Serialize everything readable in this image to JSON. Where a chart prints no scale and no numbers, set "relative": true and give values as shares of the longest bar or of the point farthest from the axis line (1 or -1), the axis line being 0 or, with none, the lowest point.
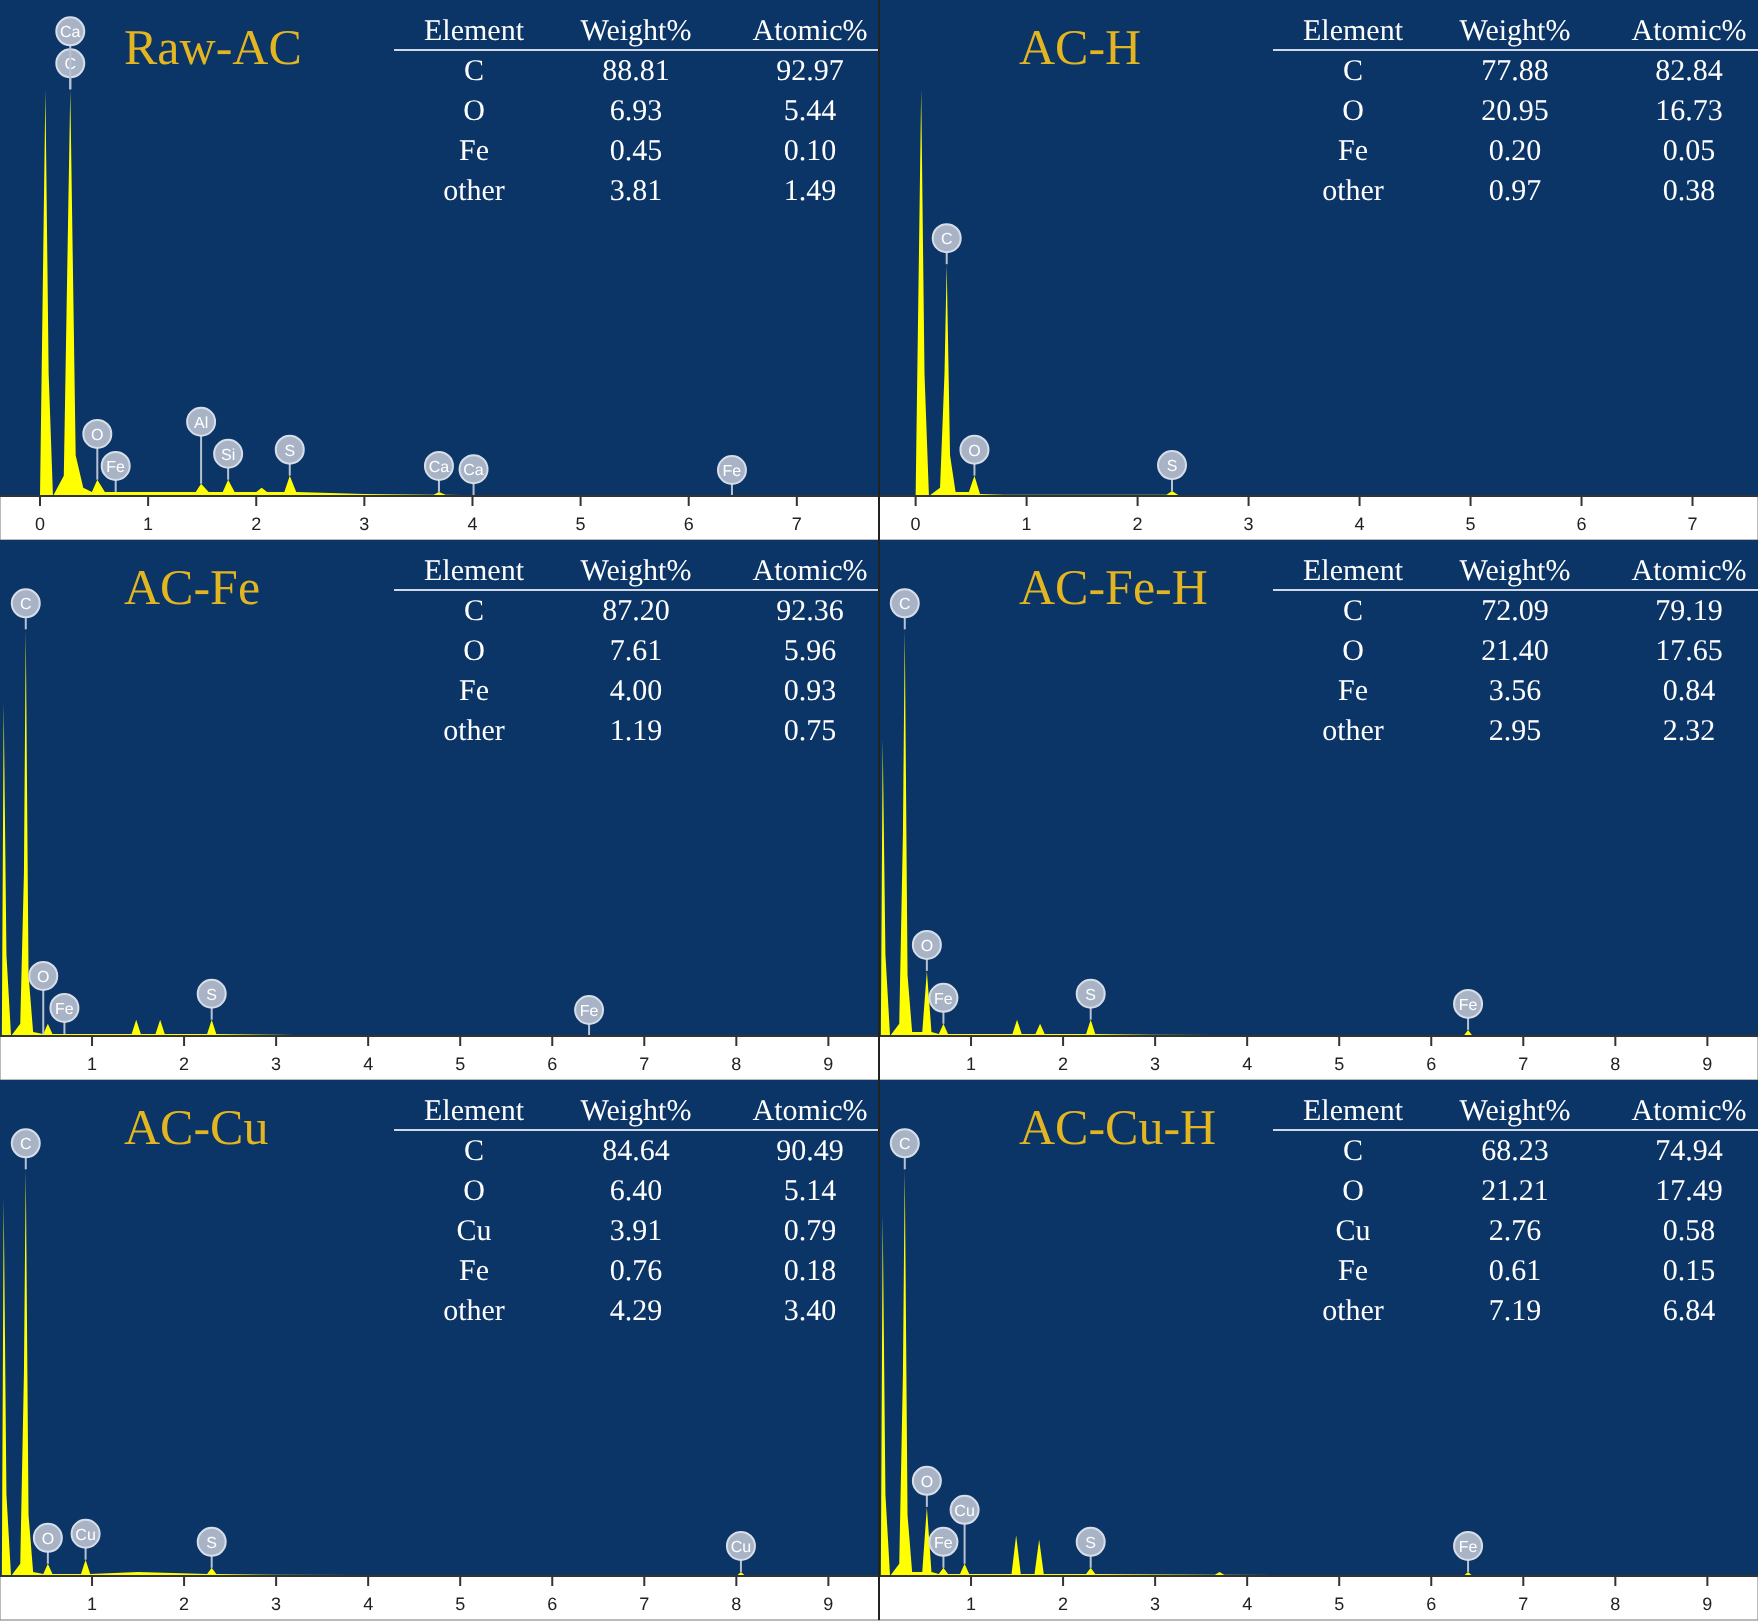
{
  "chart_data": [
    {
      "type": "area",
      "title": "Raw-AC",
      "relative": true,
      "color": "#ffff00",
      "xlim": [
        -0.37,
        7.76
      ],
      "xticks": [
        0,
        1,
        2,
        3,
        4,
        5,
        6,
        7
      ],
      "x": [
        0,
        0.03,
        0.05,
        0.08,
        0.12,
        0.22,
        0.28,
        0.33,
        0.4,
        0.48,
        0.53,
        0.6,
        0.7,
        1.2,
        1.44,
        1.49,
        1.56,
        1.69,
        1.74,
        1.8,
        2.0,
        2.05,
        2.1,
        2.26,
        2.31,
        2.37,
        3.0,
        3.64,
        3.69,
        3.75,
        4.5,
        7.7
      ],
      "values": [
        0,
        0.6,
        1,
        0.3,
        0,
        0.05,
        1,
        0.1,
        0.02,
        0.01,
        0.04,
        0.01,
        0.01,
        0.01,
        0.01,
        0.03,
        0.01,
        0.01,
        0.04,
        0.01,
        0.01,
        0.02,
        0.01,
        0.01,
        0.05,
        0.01,
        0.005,
        0.003,
        0.01,
        0.003,
        0,
        0
      ],
      "annotations": [
        "Element",
        "Weight%",
        "Atomic%",
        "C",
        "88.81",
        "92.97",
        "O",
        "6.93",
        "5.44",
        "Fe",
        "0.45",
        "0.10",
        "other",
        "3.81",
        "1.49",
        {
          "text": "C",
          "x": 0.28,
          "y": 1
        },
        {
          "text": "Ca",
          "x": 0.28,
          "y": 1
        },
        {
          "text": "Fe",
          "x": 0.7,
          "y": 0.01
        },
        {
          "text": "O",
          "x": 0.53,
          "y": 0.04
        },
        {
          "text": "Si",
          "x": 1.74,
          "y": 0.04
        },
        {
          "text": "Al",
          "x": 1.49,
          "y": 0.03
        },
        {
          "text": "S",
          "x": 2.31,
          "y": 0.05
        },
        {
          "text": "Ca",
          "x": 3.69,
          "y": 0.01
        },
        {
          "text": "Ca",
          "x": 4.01,
          "y": 0.002
        },
        {
          "text": "Fe",
          "x": 6.4,
          "y": 0
        }
      ]
    },
    {
      "type": "area",
      "title": "AC-H",
      "relative": true,
      "color": "#ffff00",
      "xlim": [
        -0.33,
        7.59
      ],
      "xticks": [
        0,
        1,
        2,
        3,
        4,
        5,
        6,
        7
      ],
      "x": [
        0,
        0.02,
        0.05,
        0.08,
        0.12,
        0.22,
        0.26,
        0.28,
        0.31,
        0.36,
        0.48,
        0.53,
        0.58,
        0.8,
        1.5,
        2.26,
        2.31,
        2.37,
        3.0,
        7.5
      ],
      "values": [
        0,
        0.4,
        1,
        0.3,
        0,
        0.02,
        0.3,
        0.57,
        0.1,
        0.01,
        0.01,
        0.05,
        0.005,
        0.003,
        0.003,
        0.003,
        0.012,
        0.002,
        0,
        0
      ],
      "annotations": [
        "Element",
        "Weight%",
        "Atomic%",
        "C",
        "77.88",
        "82.84",
        "O",
        "20.95",
        "16.73",
        "Fe",
        "0.20",
        "0.05",
        "other",
        "0.97",
        "0.38",
        {
          "text": "C",
          "x": 0.28,
          "y": 0.57
        },
        {
          "text": "O",
          "x": 0.53,
          "y": 0.05
        },
        {
          "text": "S",
          "x": 2.31,
          "y": 0.012
        }
      ]
    },
    {
      "type": "area",
      "title": "AC-Fe",
      "relative": true,
      "color": "#ffff00",
      "xlim": [
        0,
        9.55
      ],
      "xticks": [
        1,
        2,
        3,
        4,
        5,
        6,
        7,
        8,
        9
      ],
      "x": [
        0.02,
        0.04,
        0.07,
        0.12,
        0.22,
        0.26,
        0.28,
        0.31,
        0.36,
        0.47,
        0.52,
        0.57,
        0.7,
        1.43,
        1.48,
        1.53,
        1.69,
        1.74,
        1.79,
        2.25,
        2.3,
        2.35,
        3.0,
        4.0,
        9.5
      ],
      "values": [
        0,
        0.82,
        0.2,
        0,
        0.03,
        0.4,
        1,
        0.15,
        0.01,
        0.005,
        0.03,
        0.005,
        0.005,
        0.005,
        0.04,
        0.005,
        0.005,
        0.04,
        0.005,
        0.005,
        0.04,
        0.005,
        0.003,
        0,
        0
      ],
      "annotations": [
        "Element",
        "Weight%",
        "Atomic%",
        "C",
        "87.20",
        "92.36",
        "O",
        "7.61",
        "5.96",
        "Fe",
        "4.00",
        "0.93",
        "other",
        "1.19",
        "0.75",
        {
          "text": "C",
          "x": 0.28,
          "y": 1
        },
        {
          "text": "Fe",
          "x": 0.7,
          "y": 0.005
        },
        {
          "text": "O",
          "x": 0.47,
          "y": 0.005
        },
        {
          "text": "S",
          "x": 2.3,
          "y": 0.04
        },
        {
          "text": "Fe",
          "x": 6.4,
          "y": 0
        }
      ]
    },
    {
      "type": "area",
      "title": "AC-Fe-H",
      "relative": true,
      "color": "#ffff00",
      "xlim": [
        0,
        9.55
      ],
      "xticks": [
        1,
        2,
        3,
        4,
        5,
        6,
        7,
        8,
        9
      ],
      "x": [
        0.02,
        0.04,
        0.07,
        0.12,
        0.22,
        0.26,
        0.28,
        0.31,
        0.36,
        0.47,
        0.52,
        0.57,
        0.65,
        0.7,
        0.75,
        1.45,
        1.5,
        1.55,
        1.7,
        1.75,
        1.8,
        2.25,
        2.3,
        2.35,
        3.0,
        6.35,
        6.4,
        6.45,
        9.5
      ],
      "values": [
        0,
        0.73,
        0.2,
        0,
        0.03,
        0.5,
        1,
        0.15,
        0.01,
        0.01,
        0.16,
        0.01,
        0.005,
        0.03,
        0.005,
        0.005,
        0.04,
        0.005,
        0.005,
        0.03,
        0.005,
        0.005,
        0.04,
        0.005,
        0.003,
        0,
        0.015,
        0,
        0
      ],
      "annotations": [
        "Element",
        "Weight%",
        "Atomic%",
        "C",
        "72.09",
        "79.19",
        "O",
        "21.40",
        "17.65",
        "Fe",
        "3.56",
        "0.84",
        "other",
        "2.95",
        "2.32",
        {
          "text": "C",
          "x": 0.28,
          "y": 1
        },
        {
          "text": "O",
          "x": 0.52,
          "y": 0.16
        },
        {
          "text": "Fe",
          "x": 0.7,
          "y": 0.03
        },
        {
          "text": "S",
          "x": 2.3,
          "y": 0.04
        },
        {
          "text": "Fe",
          "x": 6.4,
          "y": 0.015
        }
      ]
    },
    {
      "type": "area",
      "title": "AC-Cu",
      "relative": true,
      "color": "#ffff00",
      "xlim": [
        0,
        9.55
      ],
      "xticks": [
        1,
        2,
        3,
        4,
        5,
        6,
        7,
        8,
        9
      ],
      "x": [
        0.02,
        0.04,
        0.07,
        0.12,
        0.22,
        0.26,
        0.28,
        0.31,
        0.36,
        0.47,
        0.52,
        0.57,
        0.88,
        0.93,
        0.98,
        1.5,
        2.25,
        2.3,
        2.35,
        3.0,
        8.0,
        8.05,
        8.1,
        9.5
      ],
      "values": [
        0,
        0.93,
        0.2,
        0,
        0.03,
        0.5,
        1,
        0.15,
        0.01,
        0.005,
        0.03,
        0.005,
        0.005,
        0.04,
        0.005,
        0.01,
        0.005,
        0.02,
        0.005,
        0.003,
        0,
        0.01,
        0,
        0
      ],
      "annotations": [
        "Element",
        "Weight%",
        "Atomic%",
        "C",
        "84.64",
        "90.49",
        "O",
        "6.40",
        "5.14",
        "Cu",
        "3.91",
        "0.79",
        "Fe",
        "0.76",
        "0.18",
        "other",
        "4.29",
        "3.40",
        {
          "text": "C",
          "x": 0.28,
          "y": 1
        },
        {
          "text": "O",
          "x": 0.52,
          "y": 0.03
        },
        {
          "text": "Cu",
          "x": 0.93,
          "y": 0.04
        },
        {
          "text": "S",
          "x": 2.3,
          "y": 0.02
        },
        {
          "text": "Cu",
          "x": 8.05,
          "y": 0.01
        }
      ]
    },
    {
      "type": "area",
      "title": "AC-Cu-H",
      "relative": true,
      "color": "#ffff00",
      "xlim": [
        0,
        9.55
      ],
      "xticks": [
        1,
        2,
        3,
        4,
        5,
        6,
        7,
        8,
        9
      ],
      "x": [
        0.02,
        0.04,
        0.07,
        0.12,
        0.22,
        0.26,
        0.28,
        0.31,
        0.36,
        0.47,
        0.52,
        0.57,
        0.65,
        0.7,
        0.75,
        0.88,
        0.93,
        0.98,
        1.44,
        1.49,
        1.54,
        1.69,
        1.74,
        1.79,
        2.25,
        2.3,
        2.35,
        3.65,
        3.7,
        3.75,
        6.35,
        6.4,
        6.45,
        9.5
      ],
      "values": [
        0,
        0.89,
        0.2,
        0,
        0.03,
        0.5,
        1,
        0.15,
        0.01,
        0.01,
        0.17,
        0.01,
        0.005,
        0.02,
        0.005,
        0.005,
        0.03,
        0.005,
        0.005,
        0.1,
        0.005,
        0.005,
        0.09,
        0.005,
        0.005,
        0.02,
        0.005,
        0.003,
        0.01,
        0.003,
        0,
        0.01,
        0,
        0
      ],
      "annotations": [
        "Element",
        "Weight%",
        "Atomic%",
        "C",
        "68.23",
        "74.94",
        "O",
        "21.21",
        "17.49",
        "Cu",
        "2.76",
        "0.58",
        "Fe",
        "0.61",
        "0.15",
        "other",
        "7.19",
        "6.84",
        {
          "text": "C",
          "x": 0.28,
          "y": 1
        },
        {
          "text": "O",
          "x": 0.52,
          "y": 0.17
        },
        {
          "text": "Fe",
          "x": 0.7,
          "y": 0.02
        },
        {
          "text": "Cu",
          "x": 0.93,
          "y": 0.03
        },
        {
          "text": "S",
          "x": 2.3,
          "y": 0.02
        },
        {
          "text": "Fe",
          "x": 6.4,
          "y": 0.01
        }
      ]
    }
  ]
}
